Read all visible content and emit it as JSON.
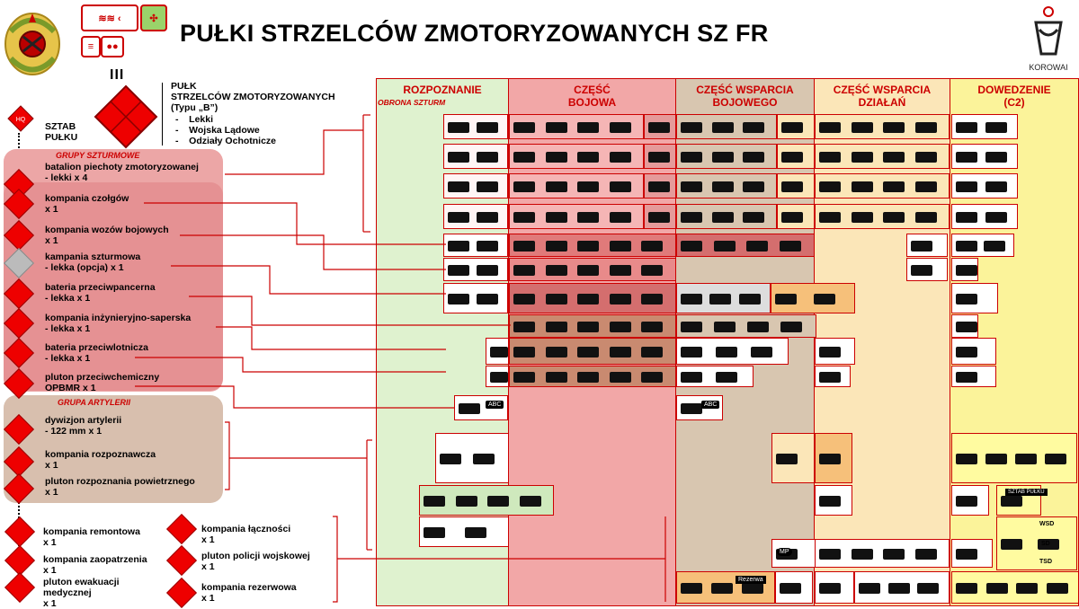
{
  "title": "PUŁKI STRZELCÓW ZMOTORYZOWANYCH SZ FR",
  "logo_text": "KOROWAI",
  "regiment": {
    "echelon": "III",
    "name": "PUŁK\nSTRZELCÓW ZMOTORYZOWANYCH",
    "type": "(Typu „B”)",
    "variants": [
      "Lekki",
      "Wojska Lądowe",
      "Odziały Ochotnicze"
    ],
    "hq_label": "SZTAB\nPUŁKU",
    "hq_badge": "HQ"
  },
  "groups": {
    "assault": "GRUPY SZTURMOWE",
    "artillery": "GRUPA ARTYLERII"
  },
  "units": [
    {
      "label": "batalion piechoty zmotoryzowanej",
      "sub": "- lekki x 4"
    },
    {
      "label": "kompania czołgów",
      "sub": "x 1"
    },
    {
      "label": "kompania wozów bojowych",
      "sub": "x 1"
    },
    {
      "label": "kampania szturmowa",
      "sub": "- lekka (opcja) x 1"
    },
    {
      "label": "bateria przeciwpancerna",
      "sub": "- lekka x 1"
    },
    {
      "label": "kompania inżynieryjno-saperska",
      "sub": "- lekka x 1"
    },
    {
      "label": "bateria przeciwlotnicza",
      "sub": "- lekka x 1"
    },
    {
      "label": "pluton przeciwchemiczny",
      "sub": "OPBMR x 1"
    },
    {
      "label": "dywizjon artylerii",
      "sub": "- 122 mm x 1"
    },
    {
      "label": "kompania rozpoznawcza",
      "sub": "x 1"
    },
    {
      "label": "pluton rozpoznania powietrznego",
      "sub": "x 1"
    }
  ],
  "support_units": [
    {
      "label": "kompania remontowa",
      "sub": "x 1"
    },
    {
      "label": "kompania zaopatrzenia",
      "sub": "x 1"
    },
    {
      "label": "pluton ewakuacji\nmedycznej",
      "sub": "x 1"
    },
    {
      "label": "kompania łączności",
      "sub": "x 1"
    },
    {
      "label": "pluton policji wojskowej",
      "sub": "x 1"
    },
    {
      "label": "kompania rezerwowa",
      "sub": "x 1"
    }
  ],
  "columns": [
    {
      "title": "ROZPOZNANIE",
      "subtitle": "OBRONA SZTURM",
      "color": "#dff2cf"
    },
    {
      "title": "CZĘŚĆ\nBOJOWA",
      "subtitle": "",
      "color": "#f2a7a7"
    },
    {
      "title": "CZĘŚĆ WSPARCIA\nBOJOWEGO",
      "subtitle": "",
      "color": "#d8c6b0"
    },
    {
      "title": "CZĘŚĆ WSPARCIA\nDZIAŁAŃ",
      "subtitle": "",
      "color": "#fbe6b8"
    },
    {
      "title": "DOWEDZENIE\n(C2)",
      "subtitle": "",
      "color": "#fbf39a"
    }
  ],
  "cell_labels": {
    "abc1": "ABC",
    "abc2": "ABC",
    "mp": "MP",
    "rezerwa": "Rezerwa",
    "sztab": "SZTAB PUŁKU",
    "wsd": "WSD",
    "sd": "SD",
    "tsd": "TSD"
  },
  "colors": {
    "accent": "#cc0000",
    "diamond": "#ee0000"
  }
}
